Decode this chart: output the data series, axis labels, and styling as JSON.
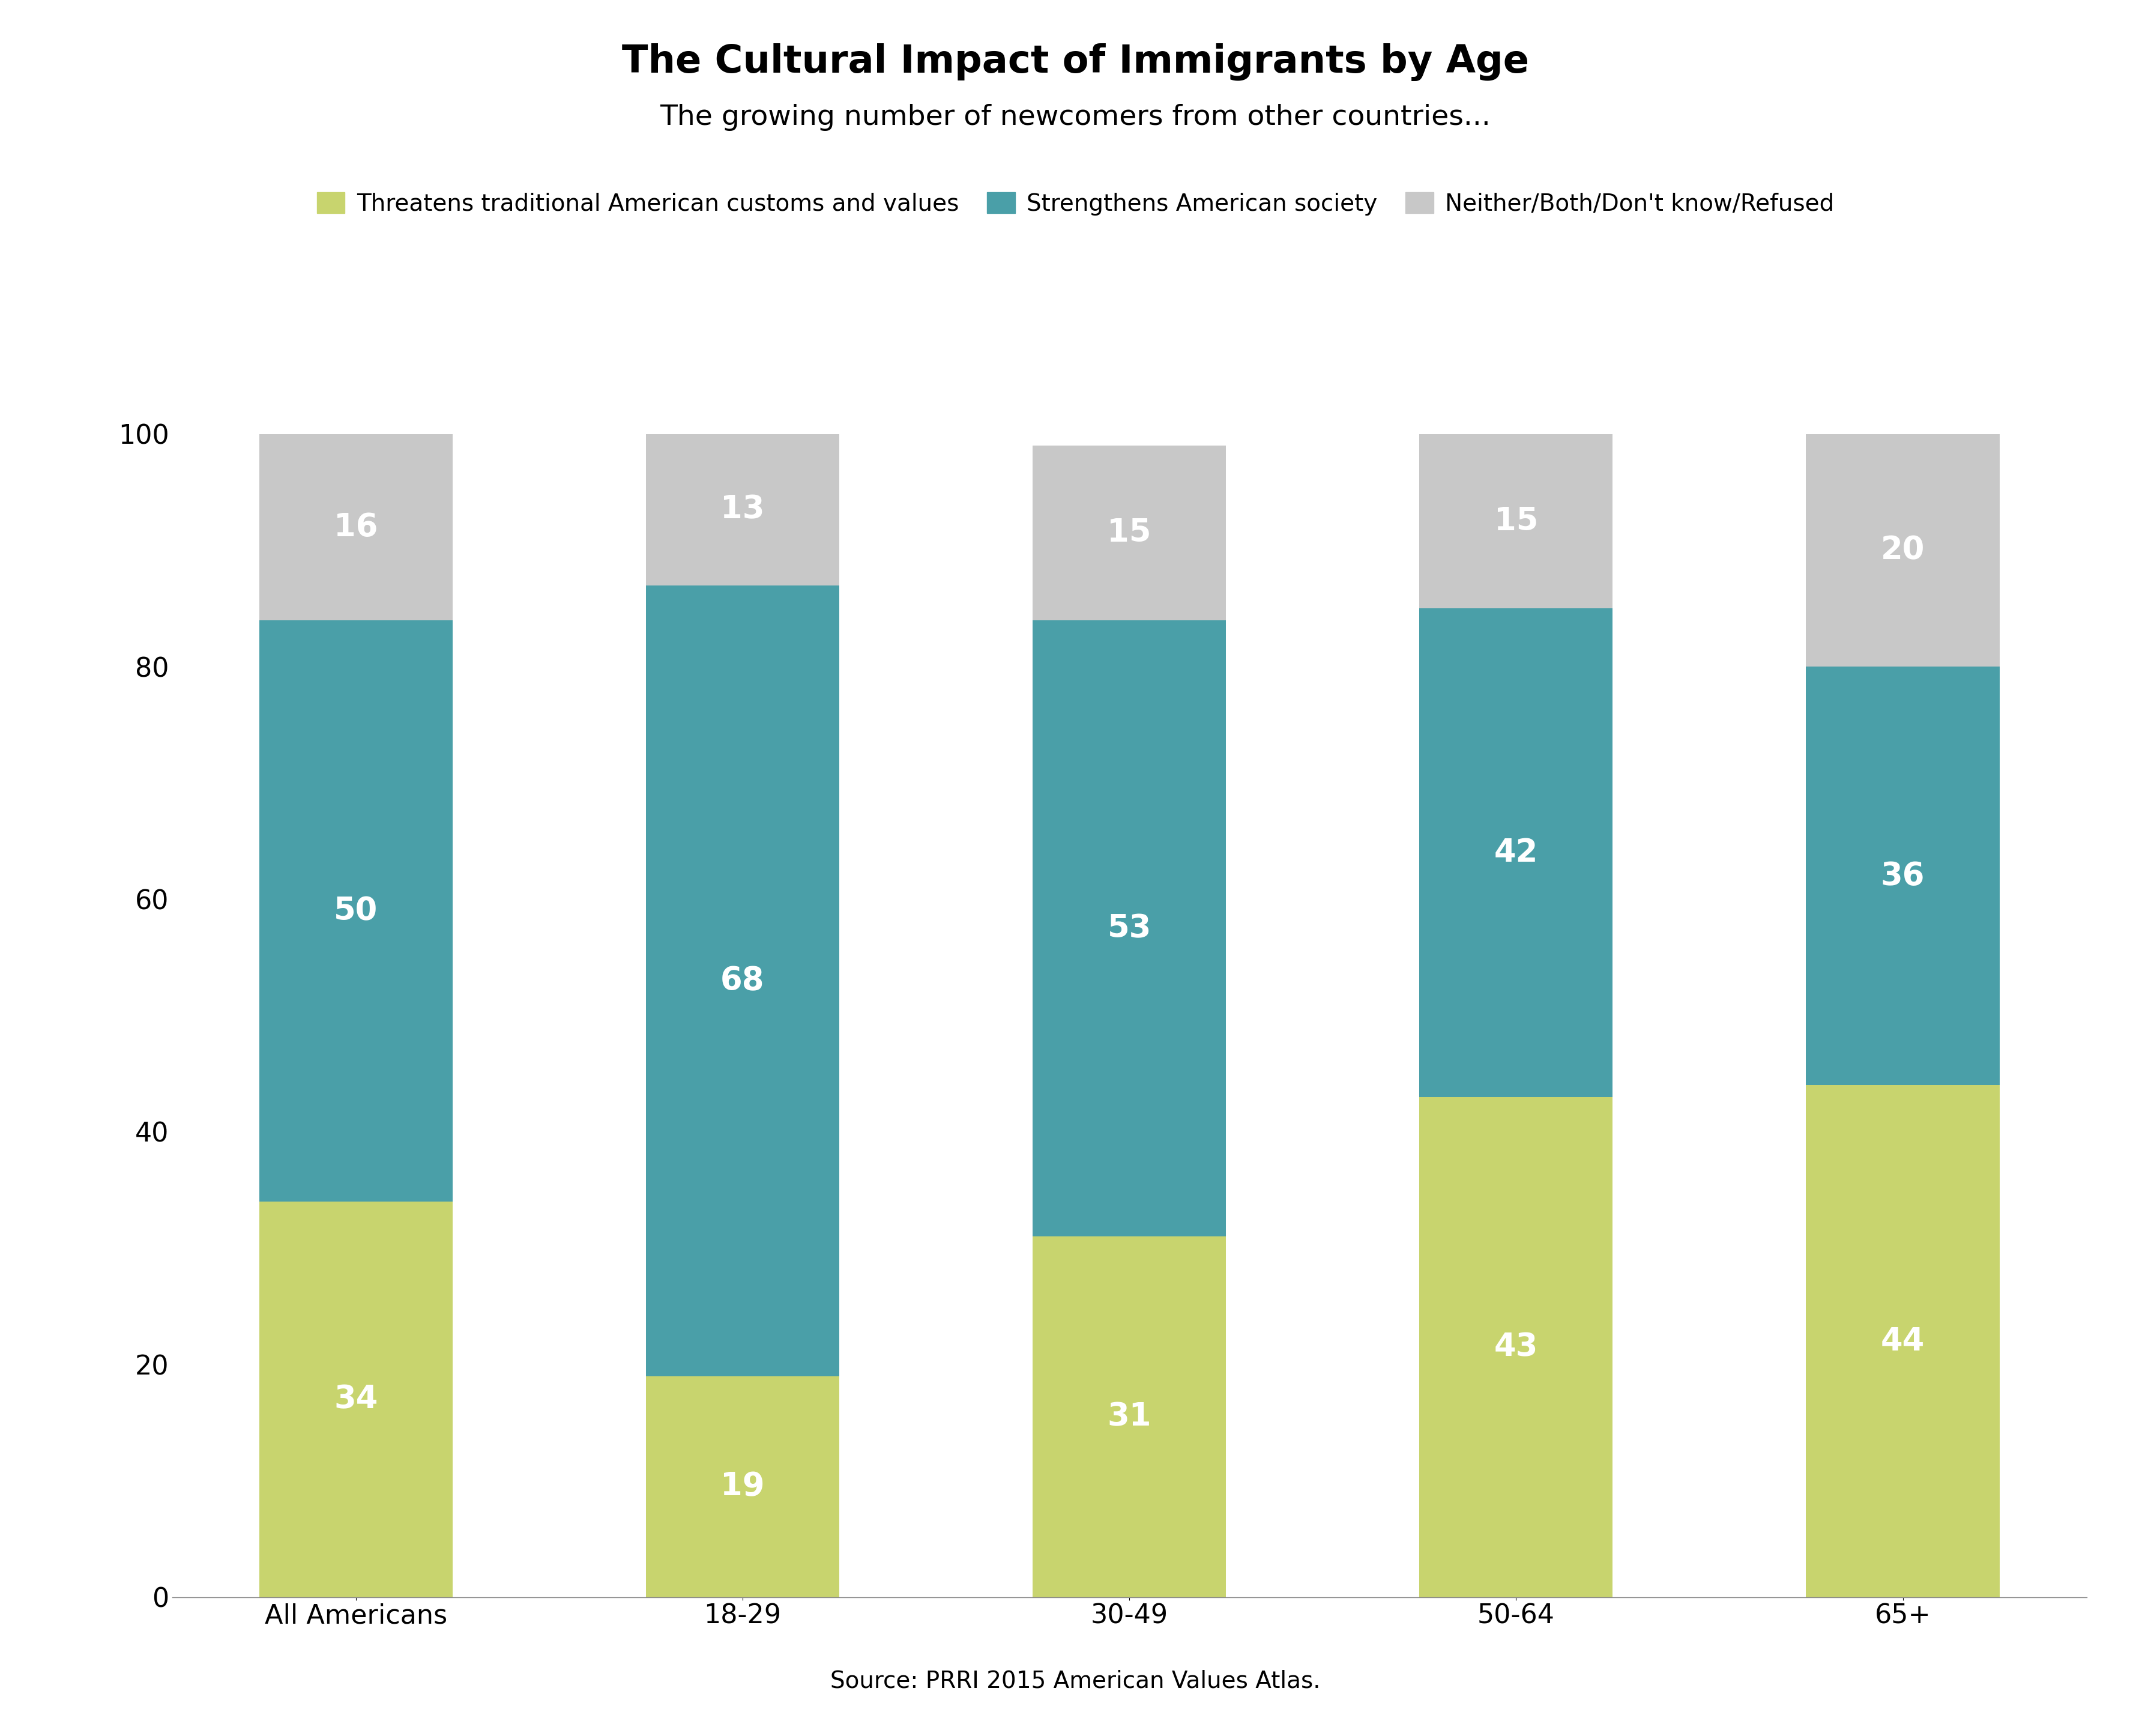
{
  "title": "The Cultural Impact of Immigrants by Age",
  "subtitle": "The growing number of newcomers from other countries...",
  "source": "Source: PRRI 2015 American Values Atlas.",
  "categories": [
    "All Americans",
    "18-29",
    "30-49",
    "50-64",
    "65+"
  ],
  "series": [
    {
      "name": "Threatens traditional American customs and values",
      "values": [
        34,
        19,
        31,
        43,
        44
      ],
      "color": "#c8d46e"
    },
    {
      "name": "Strengthens American society",
      "values": [
        50,
        68,
        53,
        42,
        36
      ],
      "color": "#4a9fa8"
    },
    {
      "name": "Neither/Both/Don't know/Refused",
      "values": [
        16,
        13,
        15,
        15,
        20
      ],
      "color": "#c8c8c8"
    }
  ],
  "ylim": [
    0,
    100
  ],
  "yticks": [
    0,
    20,
    40,
    60,
    80,
    100
  ],
  "bar_width": 0.5,
  "title_fontsize": 46,
  "subtitle_fontsize": 34,
  "tick_fontsize": 32,
  "legend_fontsize": 28,
  "source_fontsize": 28,
  "value_label_fontsize": 38,
  "background_color": "#ffffff",
  "text_color": "#000000",
  "value_label_color": "#ffffff"
}
